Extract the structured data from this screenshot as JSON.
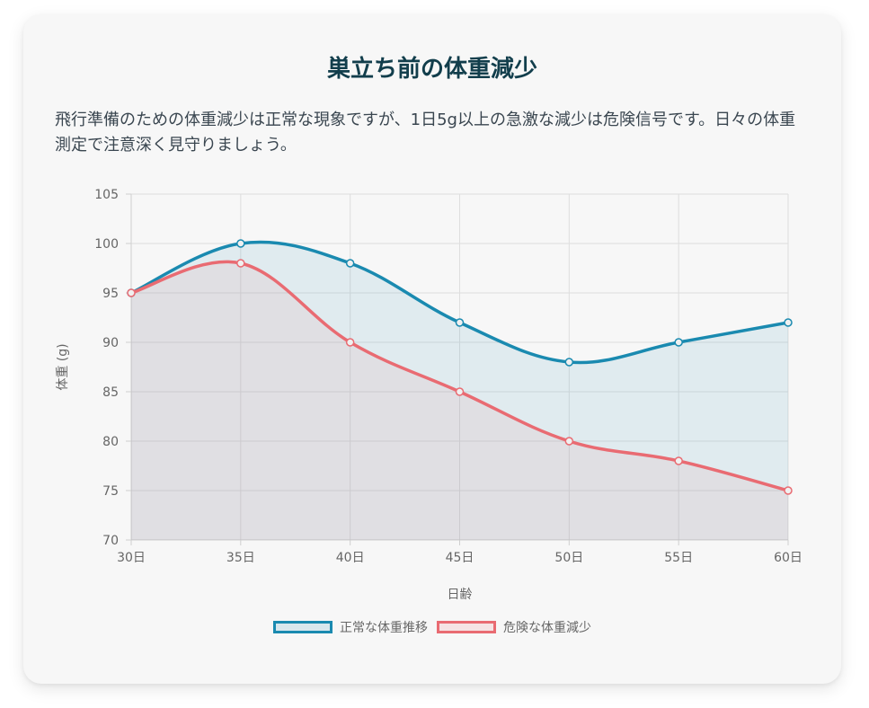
{
  "header": {
    "title": "巣立ち前の体重減少",
    "description": "飛行準備のための体重減少は正常な現象ですが、1日5g以上の急激な減少は危険信号です。日々の体重測定で注意深く見守りましょう。"
  },
  "chart_data": {
    "type": "line",
    "categories": [
      "30日",
      "35日",
      "40日",
      "45日",
      "50日",
      "55日",
      "60日"
    ],
    "x": [
      30,
      35,
      40,
      45,
      50,
      55,
      60
    ],
    "series": [
      {
        "name": "正常な体重推移",
        "values": [
          95,
          100,
          98,
          92,
          88,
          90,
          92
        ],
        "color": "#1a8ab0",
        "fill": "rgba(26,138,176,0.10)"
      },
      {
        "name": "危険な体重減少",
        "values": [
          95,
          98,
          90,
          85,
          80,
          78,
          75
        ],
        "color": "#e96b72",
        "fill": "rgba(233,107,114,0.09)"
      }
    ],
    "xlabel": "日齢",
    "ylabel": "体重 (g)",
    "ylim": [
      70,
      105
    ],
    "yticks": [
      "70",
      "75",
      "80",
      "85",
      "90",
      "95",
      "100",
      "105"
    ],
    "grid": true,
    "legend": "bottom"
  }
}
